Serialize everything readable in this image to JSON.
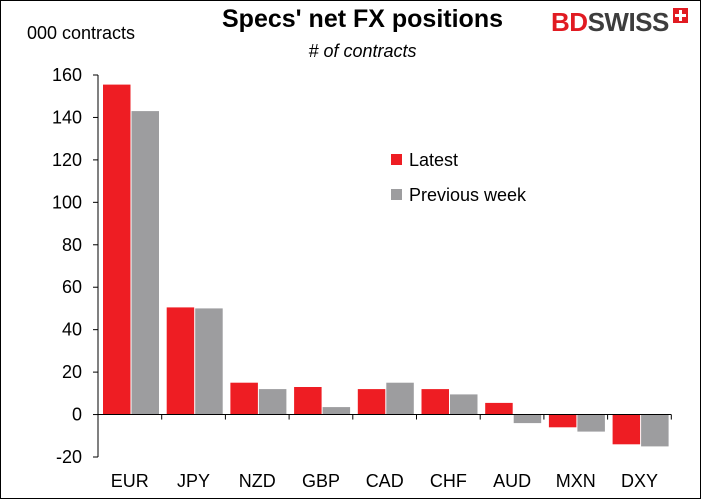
{
  "chart_data": {
    "type": "bar",
    "title": "Specs' net FX positions",
    "subtitle": "# of contracts",
    "ylabel": "000 contracts",
    "categories": [
      "EUR",
      "JPY",
      "NZD",
      "GBP",
      "CAD",
      "CHF",
      "AUD",
      "MXN",
      "DXY"
    ],
    "series": [
      {
        "name": "Latest",
        "color": "#ee1d23",
        "values": [
          155.5,
          50.5,
          15,
          13,
          12,
          12,
          5.5,
          -6,
          -14
        ]
      },
      {
        "name": "Previous week",
        "color": "#9d9d9f",
        "values": [
          143,
          50,
          12,
          3.5,
          15,
          9.5,
          -4,
          -8,
          -15
        ]
      }
    ],
    "ylim": [
      -20,
      160
    ],
    "yticks": [
      -20,
      0,
      20,
      40,
      60,
      80,
      100,
      120,
      140,
      160
    ],
    "grid": false,
    "legend_placement": "middle-right"
  },
  "logo": {
    "bd": "BD",
    "swiss": "SWISS",
    "icon": "swiss-cross-icon"
  }
}
